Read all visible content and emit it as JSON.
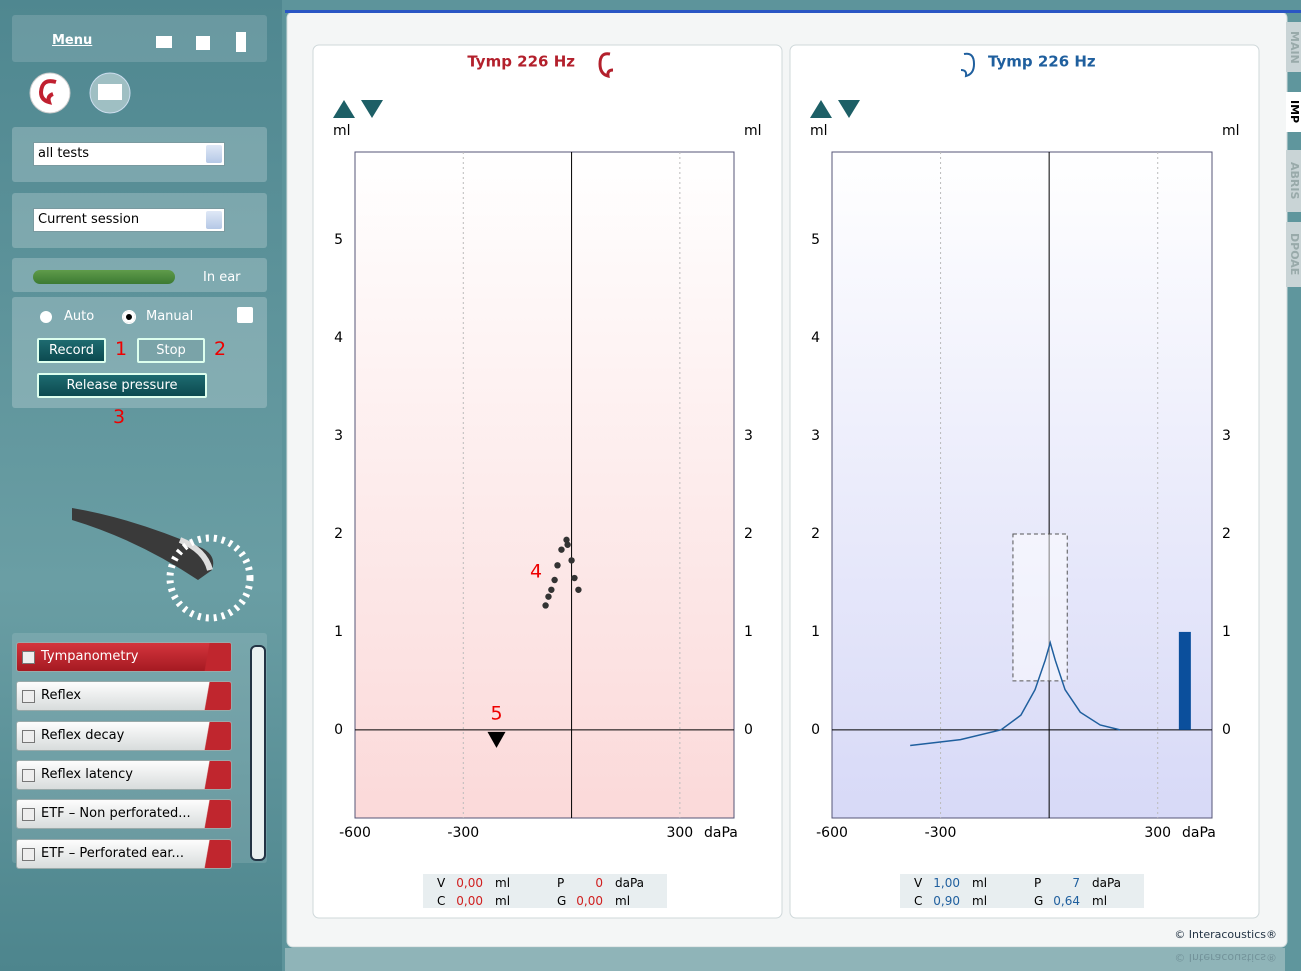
{
  "sidebar": {
    "menu": "Menu",
    "test_filter": "all tests",
    "session": "Current session",
    "probe_status": "In ear",
    "mode_auto": "Auto",
    "mode_manual": "Manual",
    "record": "Record",
    "stop": "Stop",
    "release": "Release pressure",
    "callouts": [
      "1",
      "2",
      "3"
    ],
    "tests": [
      "Tympanometry",
      "Reflex",
      "Reflex decay",
      "Reflex latency",
      "ETF – Non perforated...",
      "ETF – Perforated ear..."
    ]
  },
  "tabs": [
    "MAIN",
    "IMP",
    "ABRIS",
    "DPOAE"
  ],
  "footer": "© Interacoustics®",
  "chart_data": [
    {
      "type": "scatter",
      "title": "Tymp 226 Hz",
      "color": "#b3202c",
      "ylabel": "ml",
      "y2label": "ml",
      "xlabel": "daPa",
      "xlim": [
        -600,
        450
      ],
      "ylim": [
        -0.9,
        5.9
      ],
      "xticks": [
        -600,
        -300,
        300
      ],
      "yticks": [
        0,
        1,
        2,
        3,
        4,
        5
      ],
      "y2lim": [
        -0.9,
        5.9
      ],
      "y2ticks": [
        0,
        1,
        2,
        3
      ],
      "x": [
        -72,
        -64,
        -56,
        -47,
        -39,
        -28,
        -14,
        -11,
        0,
        8,
        19
      ],
      "values": [
        1.27,
        1.36,
        1.43,
        1.53,
        1.68,
        1.84,
        1.94,
        1.89,
        1.73,
        1.55,
        1.43
      ],
      "pressure_marker": -208,
      "annotations": [
        "4",
        "5"
      ],
      "readout": [
        {
          "label": "V",
          "value": "0,00",
          "unit": "ml"
        },
        {
          "label": "P",
          "value": "0",
          "unit": "daPa"
        },
        {
          "label": "C",
          "value": "0,00",
          "unit": "ml"
        },
        {
          "label": "G",
          "value": "0,00",
          "unit": "ml"
        }
      ]
    },
    {
      "type": "line",
      "title": "Tymp 226 Hz",
      "color": "#1f5f9e",
      "ylabel": "ml",
      "y2label": "ml",
      "xlabel": "daPa",
      "xlim": [
        -600,
        450
      ],
      "ylim": [
        -0.9,
        5.9
      ],
      "xticks": [
        -600,
        -300,
        300
      ],
      "yticks": [
        0,
        1,
        2,
        3,
        4,
        5
      ],
      "y2lim": [
        -0.9,
        5.9
      ],
      "y2ticks": [
        0,
        1,
        2,
        3
      ],
      "x": [
        -384,
        -245,
        -133,
        -78,
        -39,
        -11,
        3,
        17,
        44,
        86,
        141,
        196
      ],
      "values": [
        -0.16,
        -0.1,
        0,
        0.15,
        0.41,
        0.71,
        0.89,
        0.71,
        0.41,
        0.18,
        0.05,
        0
      ],
      "norm_box": {
        "xlim": [
          -100,
          50
        ],
        "ylim": [
          0.5,
          2
        ]
      },
      "volume_bar": {
        "x": 375,
        "value": 1
      },
      "readout": [
        {
          "label": "V",
          "value": "1,00",
          "unit": "ml"
        },
        {
          "label": "P",
          "value": "7",
          "unit": "daPa"
        },
        {
          "label": "C",
          "value": "0,90",
          "unit": "ml"
        },
        {
          "label": "G",
          "value": "0,64",
          "unit": "ml"
        }
      ]
    }
  ]
}
